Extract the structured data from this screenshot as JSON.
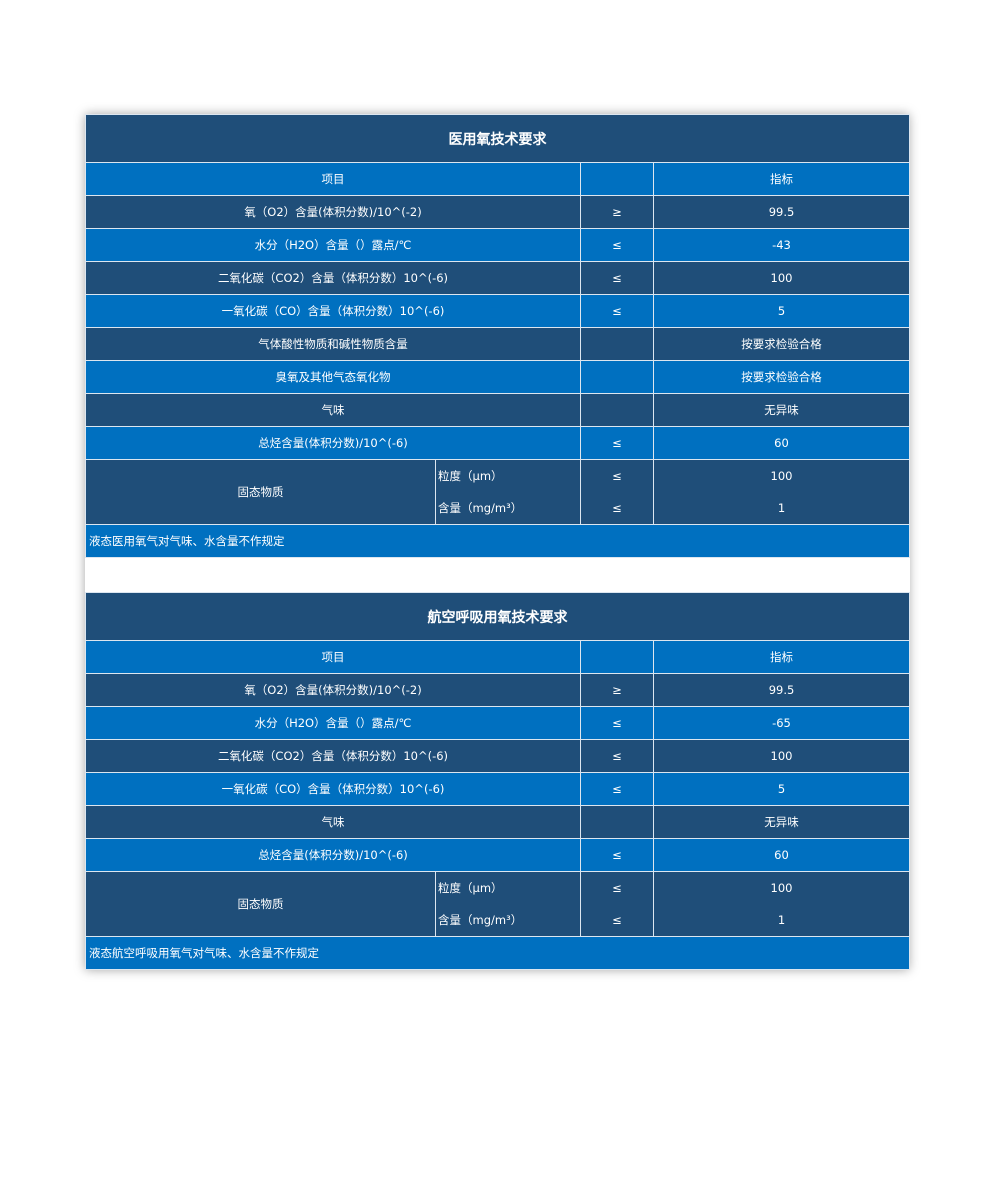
{
  "tables": [
    {
      "title": "医用氧技术要求",
      "header": {
        "item": "项目",
        "symbol": "",
        "value": "指标"
      },
      "rows": [
        {
          "item": "氧（O2）含量(体积分数)/10^(-2)",
          "symbol": "≥",
          "value": "99.5"
        },
        {
          "item": "水分（H2O）含量（）露点/℃",
          "symbol": "≤",
          "value": "-43"
        },
        {
          "item": "二氧化碳（CO2）含量（体积分数）10^(-6)",
          "symbol": "≤",
          "value": "100"
        },
        {
          "item": "一氧化碳（CO）含量（体积分数）10^(-6)",
          "symbol": "≤",
          "value": "5"
        },
        {
          "item": "气体酸性物质和碱性物质含量",
          "symbol": "",
          "value": "按要求检验合格"
        },
        {
          "item": "臭氧及其他气态氧化物",
          "symbol": "",
          "value": "按要求检验合格"
        },
        {
          "item": "气味",
          "symbol": "",
          "value": "无异味"
        },
        {
          "item": "总烃含量(体积分数)/10^(-6)",
          "symbol": "≤",
          "value": "60"
        }
      ],
      "solid": {
        "item": "固态物质",
        "sub": [
          {
            "label": "粒度（μm）",
            "symbol": "≤",
            "value": "100"
          },
          {
            "label": "含量（mg/m³）",
            "symbol": "≤",
            "value": "1"
          }
        ]
      },
      "note": "液态医用氧气对气味、水含量不作规定"
    },
    {
      "title": "航空呼吸用氧技术要求",
      "header": {
        "item": "项目",
        "symbol": "",
        "value": "指标"
      },
      "rows": [
        {
          "item": "氧（O2）含量(体积分数)/10^(-2)",
          "symbol": "≥",
          "value": "99.5"
        },
        {
          "item": "水分（H2O）含量（）露点/℃",
          "symbol": "≤",
          "value": "-65"
        },
        {
          "item": "二氧化碳（CO2）含量（体积分数）10^(-6)",
          "symbol": "≤",
          "value": "100"
        },
        {
          "item": "一氧化碳（CO）含量（体积分数）10^(-6)",
          "symbol": "≤",
          "value": "5"
        },
        {
          "item": "气味",
          "symbol": "",
          "value": "无异味"
        },
        {
          "item": "总烃含量(体积分数)/10^(-6)",
          "symbol": "≤",
          "value": "60"
        }
      ],
      "solid": {
        "item": "固态物质",
        "sub": [
          {
            "label": "粒度（μm）",
            "symbol": "≤",
            "value": "100"
          },
          {
            "label": "含量（mg/m³）",
            "symbol": "≤",
            "value": "1"
          }
        ]
      },
      "note": "液态航空呼吸用氧气对气味、水含量不作规定"
    }
  ],
  "colors": {
    "dark": "#1f4e79",
    "blue": "#0070c0"
  }
}
